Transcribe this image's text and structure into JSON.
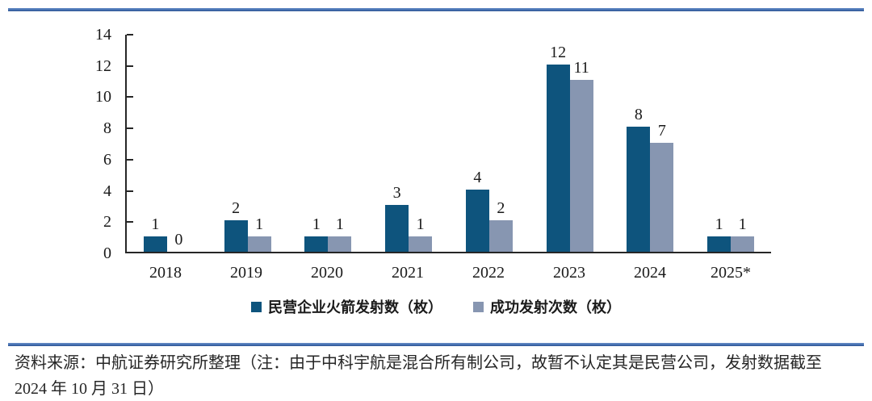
{
  "chart_data": {
    "type": "bar",
    "title": "",
    "xlabel": "",
    "ylabel": "",
    "categories": [
      "2018",
      "2019",
      "2020",
      "2021",
      "2022",
      "2023",
      "2024",
      "2025*"
    ],
    "series": [
      {
        "name": "民营企业火箭发射数（枚）",
        "key": "private-rocket-launches",
        "color": "#0E547D",
        "values": [
          1,
          2,
          1,
          3,
          4,
          12,
          8,
          1
        ]
      },
      {
        "name": "成功发射次数（枚）",
        "key": "successful-launches",
        "color": "#8796B1",
        "values": [
          0,
          1,
          1,
          1,
          2,
          11,
          7,
          1
        ]
      }
    ],
    "ylim": [
      0,
      14
    ],
    "ytick_step": 2,
    "grid": false,
    "legend_position": "bottom",
    "bar_value_labels": true
  },
  "colors": {
    "bar_primary": "#0E547D",
    "bar_secondary": "#8796B1",
    "divider_blue": "#2E5493",
    "axis": "#262626"
  },
  "source_note": {
    "line1": "资料来源：中航证券研究所整理（注：由于中科宇航是混合所有制公司，故暂不认定其是民营公司，发射数据截至",
    "line2": "2024 年 10 月 31 日）"
  }
}
